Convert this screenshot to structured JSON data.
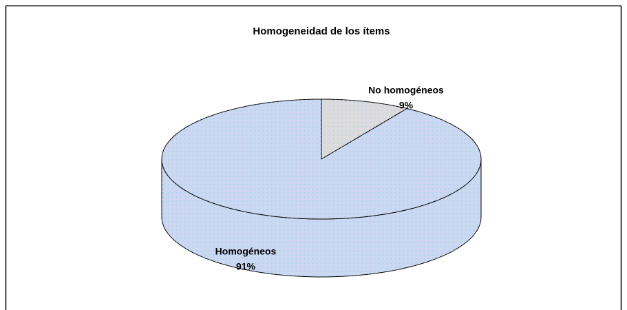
{
  "chart_data": {
    "type": "pie3d",
    "title": "Homogeneidad de los ítems",
    "categories": [
      "No homogéneos",
      "Homogéneos"
    ],
    "values": [
      9,
      91
    ],
    "value_labels": [
      "9%",
      "91%"
    ],
    "colors": [
      "#dcdcdc",
      "#c9d9f2"
    ]
  }
}
